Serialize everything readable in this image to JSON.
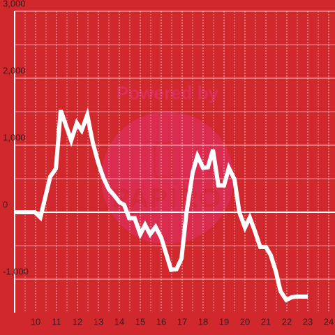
{
  "chart_data": {
    "type": "line",
    "watermark": {
      "top": "Powered by",
      "bottom": "PAPIRO"
    },
    "x": [
      9,
      9.97,
      10.23,
      10.7,
      10.97,
      11.2,
      11.7,
      11.97,
      12.2,
      12.47,
      12.73,
      13,
      13.23,
      13.5,
      13.73,
      14,
      14.23,
      14.47,
      14.73,
      15,
      15.23,
      15.47,
      15.73,
      16,
      16.47,
      16.73,
      16.97,
      17.2,
      17.5,
      17.73,
      18,
      18.23,
      18.47,
      18.73,
      19,
      19.23,
      19.5,
      19.73,
      20,
      20.23,
      20.47,
      20.73,
      21,
      21.23,
      21.47,
      21.7,
      21.97,
      22.23,
      22.47,
      23
    ],
    "series": [
      {
        "color": "#ffffff",
        "values": [
          0,
          0,
          -80,
          530,
          650,
          1520,
          1070,
          1330,
          1220,
          1450,
          1040,
          730,
          520,
          340,
          260,
          150,
          110,
          -90,
          -90,
          -330,
          -190,
          -330,
          -220,
          -380,
          -860,
          -850,
          -690,
          -20,
          590,
          840,
          660,
          670,
          930,
          400,
          400,
          660,
          490,
          0,
          -230,
          -80,
          -280,
          -520,
          -520,
          -640,
          -880,
          -1180,
          -1310,
          -1270,
          -1260,
          -1260
        ]
      }
    ],
    "xlim": [
      9,
      24.3
    ],
    "xticks": [
      10,
      11,
      12,
      13,
      14,
      15,
      16,
      17,
      18,
      19,
      20,
      21,
      22,
      23,
      24
    ],
    "ylim": [
      -1500,
      3000
    ],
    "yticks": [
      {
        "value": -1000,
        "label": "-1,000"
      },
      0,
      {
        "value": 1000,
        "label": "1,000"
      },
      {
        "value": 2000,
        "label": "2,000"
      },
      {
        "value": 3000,
        "label": "3,000"
      }
    ],
    "grid": true
  }
}
